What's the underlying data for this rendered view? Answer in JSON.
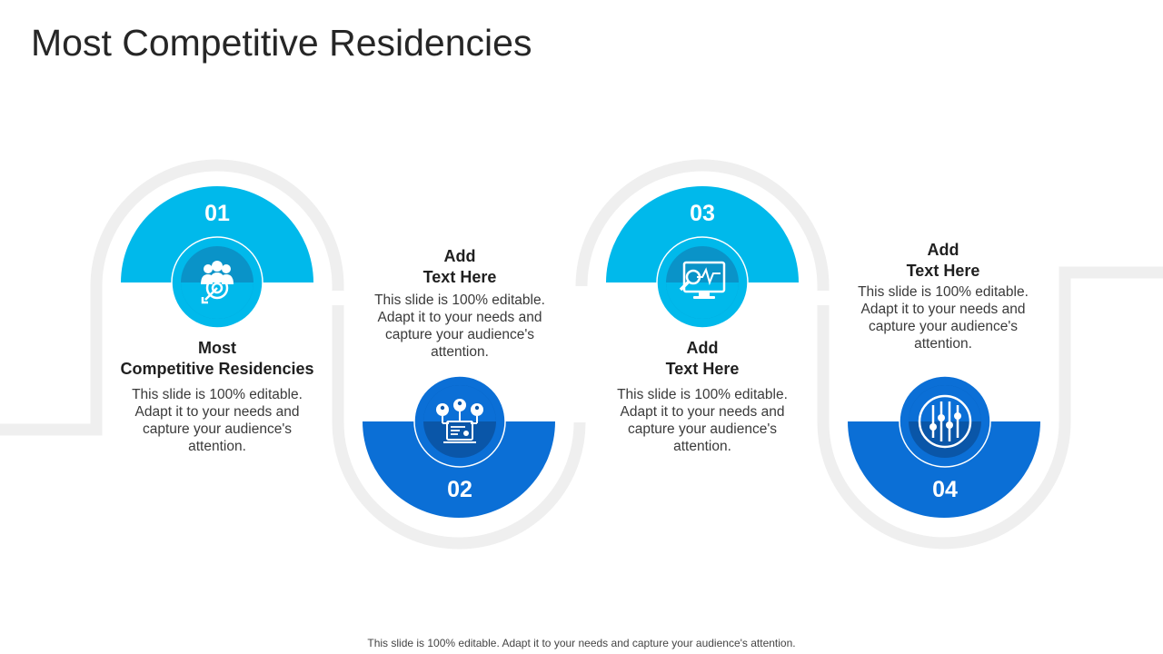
{
  "slide": {
    "title": "Most Competitive Residencies",
    "footer": "This slide is 100% editable. Adapt it to your needs and capture your audience's attention."
  },
  "colors": {
    "light_blue": "#00b9eb",
    "dark_blue": "#0b6fd6",
    "light_inner": "#0a93c8",
    "dark_inner": "#0a56a8",
    "track": "#efefef"
  },
  "steps": [
    {
      "number": "01",
      "title_line1": "Most",
      "title_line2": "Competitive Residencies",
      "description": "This slide is 100% editable. Adapt it to your needs and capture your audience's attention.",
      "icon": "team-target-icon"
    },
    {
      "number": "02",
      "title_line1": "Add",
      "title_line2": "Text Here",
      "description": "This slide is 100% editable. Adapt it to your needs and capture your audience's attention.",
      "icon": "network-laptop-icon"
    },
    {
      "number": "03",
      "title_line1": "Add",
      "title_line2": "Text Here",
      "description": "This slide is 100% editable. Adapt it to your needs and capture your audience's attention.",
      "icon": "monitor-analytics-icon"
    },
    {
      "number": "04",
      "title_line1": "Add",
      "title_line2": "Text Here",
      "description": "This slide is 100% editable. Adapt it to your needs and capture your audience's attention.",
      "icon": "sliders-icon"
    }
  ]
}
